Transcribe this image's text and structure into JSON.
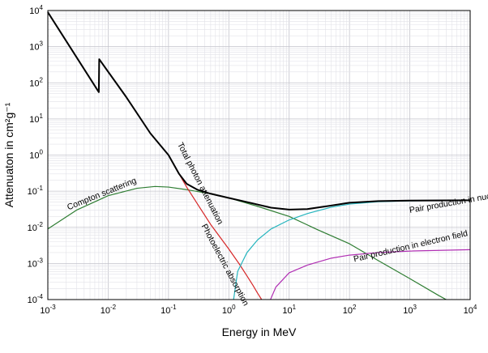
{
  "chart_data": {
    "type": "line",
    "xlabel": "Energy in MeV",
    "ylabel": "Attenuaton in cm²g⁻¹",
    "xscale": "log",
    "yscale": "log",
    "xlim": [
      0.001,
      10000
    ],
    "ylim": [
      0.0001,
      10000
    ],
    "grid": true,
    "x_ticks": [
      {
        "value": 0.001,
        "base": "10",
        "exp": "-3"
      },
      {
        "value": 0.01,
        "base": "10",
        "exp": "-2"
      },
      {
        "value": 0.1,
        "base": "10",
        "exp": "-1"
      },
      {
        "value": 1,
        "base": "10",
        "exp": "0"
      },
      {
        "value": 10,
        "base": "10",
        "exp": "1"
      },
      {
        "value": 100,
        "base": "10",
        "exp": "2"
      },
      {
        "value": 1000,
        "base": "10",
        "exp": "3"
      },
      {
        "value": 10000,
        "base": "10",
        "exp": "4"
      }
    ],
    "y_ticks": [
      {
        "value": 0.0001,
        "base": "10",
        "exp": "-4"
      },
      {
        "value": 0.001,
        "base": "10",
        "exp": "-3"
      },
      {
        "value": 0.01,
        "base": "10",
        "exp": "-2"
      },
      {
        "value": 0.1,
        "base": "10",
        "exp": "-1"
      },
      {
        "value": 1,
        "base": "10",
        "exp": "0"
      },
      {
        "value": 10,
        "base": "10",
        "exp": "1"
      },
      {
        "value": 100,
        "base": "10",
        "exp": "2"
      },
      {
        "value": 1000,
        "base": "10",
        "exp": "3"
      },
      {
        "value": 10000,
        "base": "10",
        "exp": "4"
      }
    ],
    "series": [
      {
        "name": "Total photon attenuation",
        "color": "#000000",
        "points": [
          [
            0.001,
            9000
          ],
          [
            0.007,
            55
          ],
          [
            0.0071,
            450
          ],
          [
            0.02,
            40
          ],
          [
            0.05,
            4
          ],
          [
            0.1,
            1
          ],
          [
            0.15,
            0.3
          ],
          [
            0.2,
            0.16
          ],
          [
            0.3,
            0.11
          ],
          [
            0.5,
            0.085
          ],
          [
            1,
            0.065
          ],
          [
            2,
            0.05
          ],
          [
            5,
            0.035
          ],
          [
            10,
            0.031
          ],
          [
            20,
            0.032
          ],
          [
            50,
            0.04
          ],
          [
            100,
            0.048
          ],
          [
            300,
            0.053
          ],
          [
            1000,
            0.055
          ],
          [
            10000,
            0.056
          ]
        ]
      },
      {
        "name": "Photoelectric absorption",
        "color": "#d62728",
        "points": [
          [
            0.1,
            1
          ],
          [
            0.15,
            0.3
          ],
          [
            0.2,
            0.13
          ],
          [
            0.3,
            0.045
          ],
          [
            0.5,
            0.012
          ],
          [
            1,
            0.0025
          ],
          [
            1.5,
            0.00095
          ],
          [
            2,
            0.00045
          ],
          [
            2.5,
            0.00025
          ],
          [
            3,
            0.00015
          ],
          [
            3.5,
            0.0001
          ]
        ]
      },
      {
        "name": "Compton scattering",
        "color": "#2e7d32",
        "points": [
          [
            0.001,
            0.009
          ],
          [
            0.003,
            0.03
          ],
          [
            0.01,
            0.075
          ],
          [
            0.03,
            0.12
          ],
          [
            0.06,
            0.135
          ],
          [
            0.1,
            0.13
          ],
          [
            0.2,
            0.11
          ],
          [
            0.5,
            0.085
          ],
          [
            1,
            0.065
          ],
          [
            3,
            0.038
          ],
          [
            10,
            0.02
          ],
          [
            30,
            0.0085
          ],
          [
            100,
            0.0035
          ],
          [
            300,
            0.0012
          ],
          [
            1000,
            0.00038
          ],
          [
            3000,
            0.00013
          ],
          [
            4000,
            0.0001
          ]
        ]
      },
      {
        "name": "Pair production in nuclear field",
        "color": "#26b5be",
        "points": [
          [
            1.2,
            0.0001
          ],
          [
            1.4,
            0.0006
          ],
          [
            2,
            0.002
          ],
          [
            3,
            0.0045
          ],
          [
            5,
            0.009
          ],
          [
            10,
            0.016
          ],
          [
            20,
            0.024
          ],
          [
            50,
            0.036
          ],
          [
            100,
            0.044
          ],
          [
            300,
            0.051
          ],
          [
            1000,
            0.054
          ],
          [
            10000,
            0.056
          ]
        ]
      },
      {
        "name": "Pair production in electron field",
        "color": "#b02fb3",
        "points": [
          [
            4.9,
            0.0001
          ],
          [
            6,
            0.00022
          ],
          [
            10,
            0.00055
          ],
          [
            20,
            0.0009
          ],
          [
            50,
            0.0014
          ],
          [
            100,
            0.0017
          ],
          [
            300,
            0.002
          ],
          [
            1000,
            0.0022
          ],
          [
            10000,
            0.0024
          ]
        ]
      }
    ],
    "annotations": [
      {
        "text": "Total photon attenuation",
        "x": 0.14,
        "y": 2
      },
      {
        "text": "Compton scattering",
        "x": 0.0022,
        "y": 0.03
      },
      {
        "text": "Photoelectric absorption",
        "x": 0.35,
        "y": 0.011
      },
      {
        "text": "Pair production in nuclear field",
        "x": 1000,
        "y": 0.025
      },
      {
        "text": "Pair production in electron field",
        "x": 120,
        "y": 0.0011
      }
    ]
  }
}
